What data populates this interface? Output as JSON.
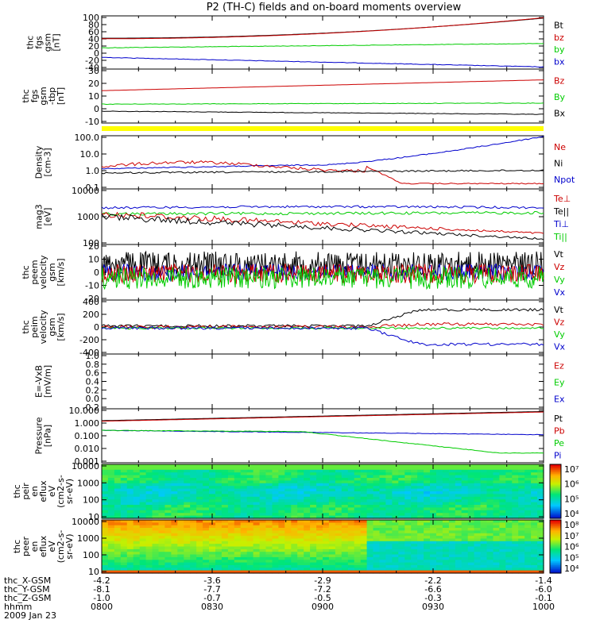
{
  "title": "P2 (TH-C) fields and on-board moments overview",
  "colors": {
    "black": "#000000",
    "red": "#cc0000",
    "green": "#00cc00",
    "blue": "#0000cc",
    "yellow": "#ffff00"
  },
  "panels": [
    {
      "id": "fgs-gsm",
      "ylabel": [
        "thc",
        "fgs",
        "gsm",
        "[nT]"
      ],
      "yticks": [
        "100",
        "80",
        "60",
        "40",
        "20",
        "0",
        "-20",
        "-40"
      ],
      "legend": [
        {
          "text": "Bt",
          "color": "black"
        },
        {
          "text": "bz",
          "color": "red"
        },
        {
          "text": "by",
          "color": "green"
        },
        {
          "text": "bx",
          "color": "blue"
        }
      ]
    },
    {
      "id": "fgs-gsm-tbp",
      "ylabel": [
        "thc",
        "fgs",
        "gsm",
        "-tbp",
        "[nT]"
      ],
      "yticks": [
        "30",
        "20",
        "10",
        "0",
        "-10"
      ],
      "legend": [
        {
          "text": "Bz",
          "color": "red"
        },
        {
          "text": "By",
          "color": "green"
        },
        {
          "text": "Bx",
          "color": "black"
        }
      ]
    },
    {
      "id": "density",
      "ylabel": [
        "Density",
        "[cm-3]"
      ],
      "yticks": [
        "100.0",
        "10.0",
        "1.0",
        "0.1"
      ],
      "legend": [
        {
          "text": "Ne",
          "color": "red"
        },
        {
          "text": "Ni",
          "color": "black"
        },
        {
          "text": "Npot",
          "color": "blue"
        }
      ]
    },
    {
      "id": "temperature",
      "ylabel": [
        "mag3",
        "[eV]"
      ],
      "yticks": [
        "10000",
        "1000",
        "100"
      ],
      "legend": [
        {
          "text": "Te⊥",
          "color": "red"
        },
        {
          "text": "Te||",
          "color": "black"
        },
        {
          "text": "Ti⊥",
          "color": "blue"
        },
        {
          "text": "Ti||",
          "color": "green"
        }
      ]
    },
    {
      "id": "velocity-e",
      "ylabel": [
        "thc",
        "peem",
        "velocity",
        "gsm",
        "[km/s]"
      ],
      "yticks": [
        "20",
        "10",
        "0",
        "-10",
        "-20"
      ],
      "legend": [
        {
          "text": "Vt",
          "color": "black"
        },
        {
          "text": "Vz",
          "color": "red"
        },
        {
          "text": "Vy",
          "color": "green"
        },
        {
          "text": "Vx",
          "color": "blue"
        }
      ]
    },
    {
      "id": "velocity-i",
      "ylabel": [
        "thc",
        "peim",
        "velocity",
        "gsm",
        "[km/s]"
      ],
      "yticks": [
        "400",
        "200",
        "0",
        "-200",
        "-400"
      ],
      "legend": [
        {
          "text": "Vt",
          "color": "black"
        },
        {
          "text": "Vz",
          "color": "red"
        },
        {
          "text": "Vy",
          "color": "green"
        },
        {
          "text": "Vx",
          "color": "blue"
        }
      ]
    },
    {
      "id": "efield",
      "ylabel": [
        "E=-VxB",
        "[mV/m]"
      ],
      "yticks": [
        "1.0",
        "0.8",
        "0.6",
        "0.4",
        "0.2",
        "0.0",
        "-0.2"
      ],
      "legend": [
        {
          "text": "Ez",
          "color": "red"
        },
        {
          "text": "Ey",
          "color": "green"
        },
        {
          "text": "Ex",
          "color": "blue"
        }
      ]
    },
    {
      "id": "pressure",
      "ylabel": [
        "Pressure",
        "[nPa]"
      ],
      "yticks": [
        "10.000",
        "1.000",
        "0.100",
        "0.010",
        "0.001"
      ],
      "legend": [
        {
          "text": "Pt",
          "color": "black"
        },
        {
          "text": "Pb",
          "color": "red"
        },
        {
          "text": "Pe",
          "color": "green"
        },
        {
          "text": "Pi",
          "color": "blue"
        }
      ]
    },
    {
      "id": "ion-spec",
      "ylabel": [
        "thc",
        "peir",
        "en",
        "eflux",
        "eV",
        "(cm2-s-",
        "sr-eV)"
      ],
      "yticks": [
        "10000",
        "1000",
        "100",
        "10"
      ],
      "cbar": [
        "10⁷",
        "10⁶",
        "10⁵",
        "10⁴"
      ]
    },
    {
      "id": "elec-spec",
      "ylabel": [
        "thc",
        "peer",
        "en",
        "eflux",
        "eV",
        "(cm2-s-",
        "sr-eV)"
      ],
      "yticks": [
        "10000",
        "1000",
        "100",
        "10"
      ],
      "cbar": [
        "10⁸",
        "10⁷",
        "10⁶",
        "10⁵",
        "10⁴"
      ]
    }
  ],
  "xaxis": {
    "rows": [
      {
        "label": "thc_X-GSM",
        "values": [
          "-4.2",
          "-3.6",
          "-2.9",
          "-2.2",
          "-1.4"
        ]
      },
      {
        "label": "thc_Y-GSM",
        "values": [
          "-8.1",
          "-7.7",
          "-7.2",
          "-6.6",
          "-6.0"
        ]
      },
      {
        "label": "thc_Z-GSM",
        "values": [
          "-1.0",
          "-0.7",
          "-0.5",
          "-0.3",
          "-0.1"
        ]
      },
      {
        "label": "hhmm",
        "values": [
          "0800",
          "0830",
          "0900",
          "0930",
          "1000"
        ]
      }
    ],
    "date": "2009 Jan 23"
  },
  "chart_data": {
    "type": "line",
    "title": "P2 (TH-C) fields and on-board moments overview",
    "x_time": [
      "0800",
      "0830",
      "0900",
      "0930",
      "1000"
    ],
    "series": [
      {
        "panel": "fgs-gsm",
        "name": "Bt",
        "x": [
          "0800",
          "0830",
          "0900",
          "0930",
          "1000"
        ],
        "values": [
          38,
          50,
          65,
          85,
          110
        ]
      },
      {
        "panel": "fgs-gsm",
        "name": "bz",
        "x": [
          "0800",
          "0830",
          "0900",
          "0930",
          "1000"
        ],
        "values": [
          36,
          48,
          62,
          82,
          105
        ]
      },
      {
        "panel": "fgs-gsm",
        "name": "by",
        "x": [
          "0800",
          "0830",
          "0900",
          "0930",
          "1000"
        ],
        "values": [
          8,
          11,
          14,
          16,
          20
        ]
      },
      {
        "panel": "fgs-gsm",
        "name": "bx",
        "x": [
          "0800",
          "0830",
          "0900",
          "0930",
          "1000"
        ],
        "values": [
          -15,
          -22,
          -30,
          -37,
          -44
        ]
      },
      {
        "panel": "fgs-gsm-tbp",
        "name": "Bz",
        "x": [
          "0800",
          "0830",
          "0900",
          "0930",
          "1000"
        ],
        "values": [
          9,
          12,
          15,
          18,
          22
        ]
      },
      {
        "panel": "fgs-gsm-tbp",
        "name": "By",
        "x": [
          "0800",
          "0830",
          "0900",
          "0930",
          "1000"
        ],
        "values": [
          2,
          2.5,
          3,
          3.5,
          4
        ]
      },
      {
        "panel": "fgs-gsm-tbp",
        "name": "Bx",
        "x": [
          "0800",
          "0830",
          "0900",
          "0930",
          "1000"
        ],
        "values": [
          -5,
          -6,
          -7,
          -7.5,
          -8
        ]
      },
      {
        "panel": "density",
        "name": "Ne",
        "x": [
          "0800",
          "0830",
          "0900",
          "0930",
          "1000"
        ],
        "values": [
          1.5,
          2.5,
          2.2,
          0.2,
          0.15
        ]
      },
      {
        "panel": "density",
        "name": "Ni",
        "x": [
          "0800",
          "0830",
          "0900",
          "0930",
          "1000"
        ],
        "values": [
          0.6,
          0.9,
          0.8,
          0.9,
          1.1
        ]
      },
      {
        "panel": "density",
        "name": "Npot",
        "x": [
          "0800",
          "0830",
          "0900",
          "0930",
          "1000"
        ],
        "values": [
          1.0,
          1.5,
          2.5,
          15,
          60
        ]
      },
      {
        "panel": "temperature",
        "name": "Ti⊥",
        "x": [
          "0800",
          "0830",
          "0900",
          "0930",
          "1000"
        ],
        "values": [
          2500,
          3000,
          3000,
          2800,
          2200
        ]
      },
      {
        "panel": "temperature",
        "name": "Ti||",
        "x": [
          "0800",
          "0830",
          "0900",
          "0930",
          "1000"
        ],
        "values": [
          1700,
          2000,
          1900,
          1800,
          1500
        ]
      },
      {
        "panel": "temperature",
        "name": "Te⊥",
        "x": [
          "0800",
          "0830",
          "0900",
          "0930",
          "1000"
        ],
        "values": [
          1000,
          500,
          400,
          350,
          250
        ]
      },
      {
        "panel": "temperature",
        "name": "Te||",
        "x": [
          "0800",
          "0830",
          "0900",
          "0930",
          "1000"
        ],
        "values": [
          900,
          450,
          320,
          270,
          200
        ]
      },
      {
        "panel": "velocity-i",
        "name": "Vt",
        "x": [
          "0800",
          "0830",
          "0900",
          "0930",
          "1000"
        ],
        "values": [
          30,
          30,
          50,
          250,
          250
        ]
      },
      {
        "panel": "velocity-i",
        "name": "Vx",
        "x": [
          "0800",
          "0830",
          "0900",
          "0930",
          "1000"
        ],
        "values": [
          0,
          0,
          -20,
          -220,
          -220
        ]
      },
      {
        "panel": "pressure",
        "name": "Pt",
        "x": [
          "0800",
          "0830",
          "0900",
          "0930",
          "1000"
        ],
        "values": [
          0.6,
          1.2,
          2,
          4,
          7
        ]
      },
      {
        "panel": "pressure",
        "name": "Pe",
        "x": [
          "0800",
          "0830",
          "0900",
          "0930",
          "1000"
        ],
        "values": [
          0.18,
          0.17,
          0.12,
          0.02,
          0.006
        ]
      },
      {
        "panel": "pressure",
        "name": "Pi",
        "x": [
          "0800",
          "0830",
          "0900",
          "0930",
          "1000"
        ],
        "values": [
          0.18,
          0.17,
          0.15,
          0.12,
          0.1
        ]
      }
    ]
  }
}
